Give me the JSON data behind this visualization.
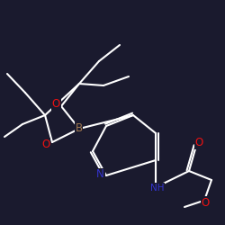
{
  "background_color": "#1a1a2e",
  "bond_color": "#ffffff",
  "atom_colors": {
    "N": "#3333cc",
    "O": "#ee1111",
    "B": "#a07850",
    "C": "#ffffff",
    "H": "#ffffff"
  },
  "figsize": [
    2.5,
    2.5
  ],
  "dpi": 100,
  "xlim": [
    0,
    10
  ],
  "ylim": [
    0,
    10
  ]
}
